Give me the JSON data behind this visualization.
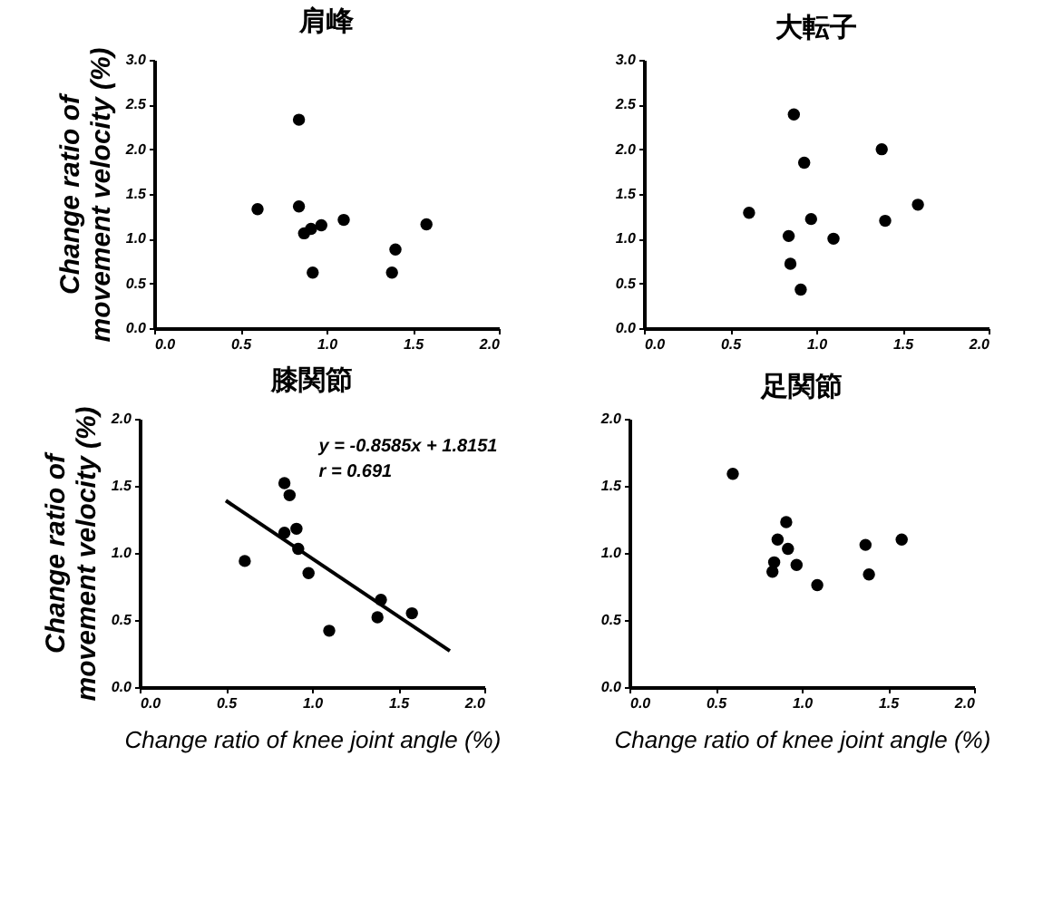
{
  "chart_data": [
    {
      "type": "scatter",
      "title": "肩峰",
      "ylabel": "Change ratio of movement velocity (%)",
      "marker": "circle",
      "xlim": [
        0,
        2.0
      ],
      "xticks": [
        {
          "value": 0,
          "label": "0.0"
        },
        {
          "value": 0.5,
          "label": "0.5"
        },
        {
          "value": 1.0,
          "label": "1.0"
        },
        {
          "value": 1.5,
          "label": "1.5"
        },
        {
          "value": 2.0,
          "label": "2.0"
        }
      ],
      "ylim": [
        0,
        3.0
      ],
      "yticks": [
        {
          "value": 0,
          "label": "0.0"
        },
        {
          "value": 0.5,
          "label": "0.5"
        },
        {
          "value": 1.0,
          "label": "1.0"
        },
        {
          "value": 1.5,
          "label": "1.5"
        },
        {
          "value": 2.0,
          "label": "2.0"
        },
        {
          "value": 2.5,
          "label": "2.5"
        },
        {
          "value": 3.0,
          "label": "3.0"
        }
      ],
      "series": [
        {
          "color": "#000000",
          "x": [
            0.6,
            0.84,
            0.84,
            0.87,
            0.91,
            0.97,
            0.92,
            1.1,
            1.58,
            1.4,
            1.38
          ],
          "values": [
            1.33,
            2.33,
            1.36,
            1.06,
            1.11,
            1.15,
            0.62,
            1.21,
            1.16,
            0.88,
            0.62
          ]
        }
      ]
    },
    {
      "type": "scatter",
      "title": "大転子",
      "marker": "circle",
      "xlim": [
        0,
        2.0
      ],
      "xticks": [
        {
          "value": 0,
          "label": "0.0"
        },
        {
          "value": 0.5,
          "label": "0.5"
        },
        {
          "value": 1.0,
          "label": "1.0"
        },
        {
          "value": 1.5,
          "label": "1.5"
        },
        {
          "value": 2.0,
          "label": "2.0"
        }
      ],
      "ylim": [
        0,
        3.0
      ],
      "yticks": [
        {
          "value": 0,
          "label": "0.0"
        },
        {
          "value": 0.5,
          "label": "0.5"
        },
        {
          "value": 1.0,
          "label": "1.0"
        },
        {
          "value": 1.5,
          "label": "1.5"
        },
        {
          "value": 2.0,
          "label": "2.0"
        },
        {
          "value": 2.5,
          "label": "2.5"
        },
        {
          "value": 3.0,
          "label": "3.0"
        }
      ],
      "series": [
        {
          "color": "#000000",
          "x": [
            0.61,
            0.87,
            0.93,
            0.84,
            0.85,
            0.91,
            0.97,
            1.1,
            1.38,
            1.4,
            1.59
          ],
          "values": [
            1.29,
            2.39,
            1.85,
            1.03,
            0.72,
            0.43,
            1.22,
            1.0,
            2.0,
            1.2,
            1.38
          ]
        }
      ]
    },
    {
      "type": "scatter",
      "title": "膝関節",
      "ylabel": "Change ratio of movement velocity (%)",
      "xlabel": "Change ratio of knee joint angle (%)",
      "marker": "circle",
      "annotations": [
        "y = -0.8585x + 1.8151",
        "r = 0.691"
      ],
      "xlim": [
        0,
        2.0
      ],
      "xticks": [
        {
          "value": 0,
          "label": "0.0"
        },
        {
          "value": 0.5,
          "label": "0.5"
        },
        {
          "value": 1.0,
          "label": "1.0"
        },
        {
          "value": 1.5,
          "label": "1.5"
        },
        {
          "value": 2.0,
          "label": "2.0"
        }
      ],
      "ylim": [
        0,
        2.0
      ],
      "yticks": [
        {
          "value": 0,
          "label": "0.0"
        },
        {
          "value": 0.5,
          "label": "0.5"
        },
        {
          "value": 1.0,
          "label": "1.0"
        },
        {
          "value": 1.5,
          "label": "1.5"
        },
        {
          "value": 2.0,
          "label": "2.0"
        }
      ],
      "series": [
        {
          "color": "#000000",
          "x": [
            0.61,
            0.84,
            0.87,
            0.84,
            0.91,
            0.92,
            0.98,
            1.1,
            1.38,
            1.4,
            1.58
          ],
          "values": [
            0.94,
            1.52,
            1.43,
            1.15,
            1.18,
            1.03,
            0.85,
            0.42,
            0.52,
            0.65,
            0.55
          ]
        },
        {
          "type": "line",
          "marker": "none",
          "color": "#000000",
          "x": [
            0.5,
            1.8
          ],
          "values": [
            1.39,
            0.27
          ]
        }
      ]
    },
    {
      "type": "scatter",
      "title": "足関節",
      "xlabel": "Change ratio of knee joint angle (%)",
      "marker": "circle",
      "xlim": [
        0,
        2.0
      ],
      "xticks": [
        {
          "value": 0,
          "label": "0.0"
        },
        {
          "value": 0.5,
          "label": "0.5"
        },
        {
          "value": 1.0,
          "label": "1.0"
        },
        {
          "value": 1.5,
          "label": "1.5"
        },
        {
          "value": 2.0,
          "label": "2.0"
        }
      ],
      "ylim": [
        0,
        2.0
      ],
      "yticks": [
        {
          "value": 0,
          "label": "0.0"
        },
        {
          "value": 0.5,
          "label": "0.5"
        },
        {
          "value": 1.0,
          "label": "1.0"
        },
        {
          "value": 1.5,
          "label": "1.5"
        },
        {
          "value": 2.0,
          "label": "2.0"
        }
      ],
      "series": [
        {
          "color": "#000000",
          "x": [
            0.6,
            0.91,
            0.86,
            0.92,
            0.84,
            0.83,
            0.97,
            1.09,
            1.37,
            1.39,
            1.58
          ],
          "values": [
            1.59,
            1.23,
            1.1,
            1.03,
            0.93,
            0.86,
            0.91,
            0.76,
            1.06,
            0.84,
            1.1
          ]
        }
      ]
    }
  ]
}
